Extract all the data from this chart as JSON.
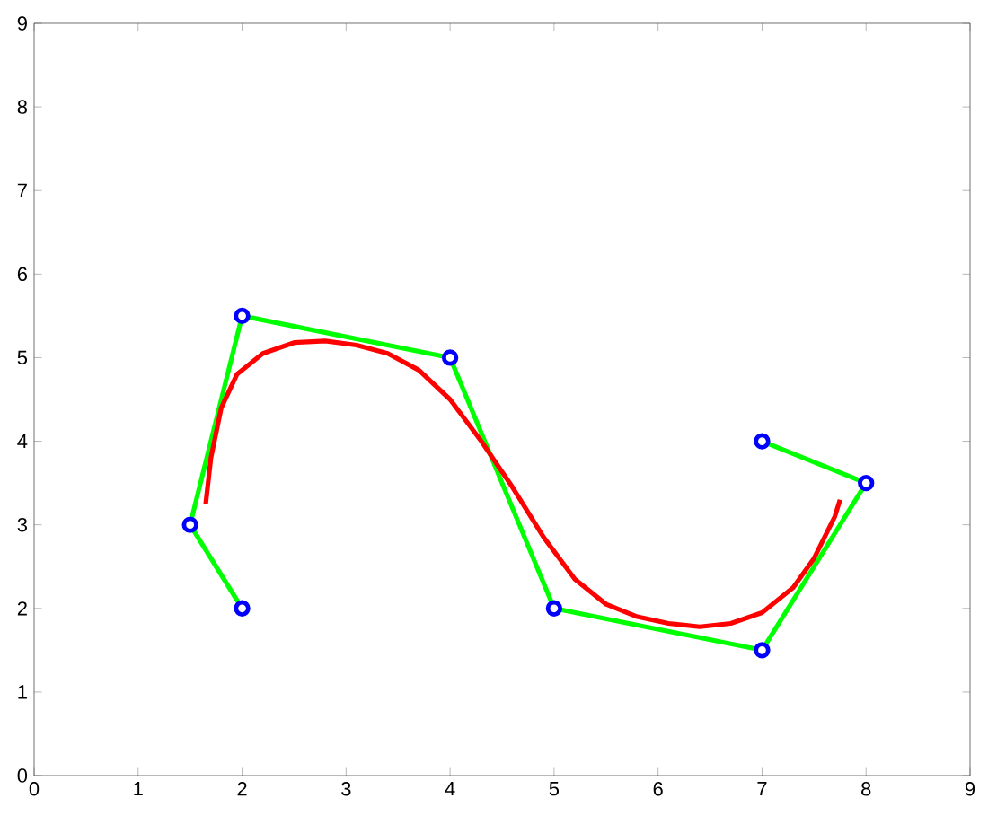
{
  "chart_data": {
    "type": "line",
    "xlim": [
      0,
      9
    ],
    "ylim": [
      0,
      9
    ],
    "xticks": [
      0,
      1,
      2,
      3,
      4,
      5,
      6,
      7,
      8,
      9
    ],
    "yticks": [
      0,
      1,
      2,
      3,
      4,
      5,
      6,
      7,
      8,
      9
    ],
    "series": [
      {
        "color": "#00ff00",
        "x": [
          2,
          1.5,
          2,
          4,
          5,
          7,
          8,
          7
        ],
        "values": [
          2,
          3,
          5.5,
          5,
          2,
          1.5,
          3.5,
          4
        ]
      },
      {
        "type": "scatter",
        "color": "#0000ff",
        "marker": "circle",
        "x": [
          2,
          1.5,
          2,
          4,
          5,
          7,
          8,
          7
        ],
        "values": [
          2,
          3,
          5.5,
          5,
          2,
          1.5,
          3.5,
          4
        ]
      },
      {
        "color": "#ff0000",
        "x": [
          1.65,
          1.7,
          1.8,
          1.95,
          2.2,
          2.5,
          2.8,
          3.1,
          3.4,
          3.7,
          4.0,
          4.3,
          4.6,
          4.9,
          5.2,
          5.5,
          5.8,
          6.1,
          6.4,
          6.7,
          7.0,
          7.3,
          7.5,
          7.7,
          7.75
        ],
        "values": [
          3.25,
          3.8,
          4.4,
          4.8,
          5.05,
          5.18,
          5.2,
          5.15,
          5.05,
          4.85,
          4.5,
          4.0,
          3.45,
          2.85,
          2.35,
          2.05,
          1.9,
          1.82,
          1.78,
          1.82,
          1.95,
          2.25,
          2.6,
          3.1,
          3.3
        ]
      }
    ]
  }
}
